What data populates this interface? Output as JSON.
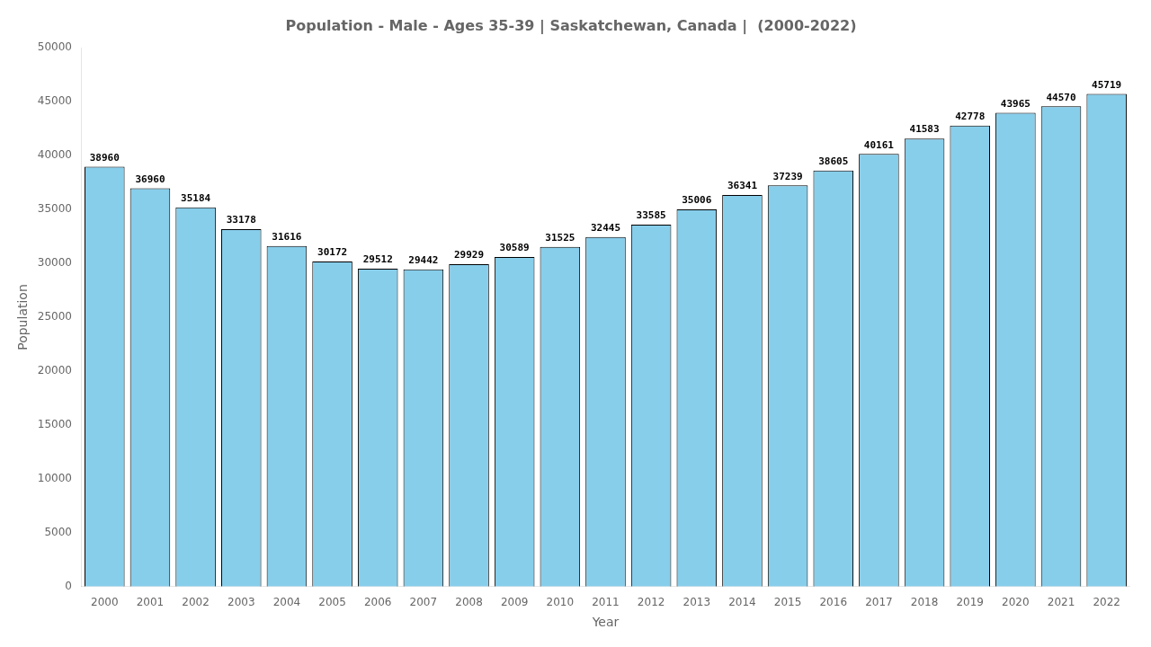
{
  "chart_data": {
    "type": "bar",
    "title": "Population - Male - Ages 35-39 | Saskatchewan, Canada |  (2000-2022)",
    "xlabel": "Year",
    "ylabel": "Population",
    "categories": [
      "2000",
      "2001",
      "2002",
      "2003",
      "2004",
      "2005",
      "2006",
      "2007",
      "2008",
      "2009",
      "2010",
      "2011",
      "2012",
      "2013",
      "2014",
      "2015",
      "2016",
      "2017",
      "2018",
      "2019",
      "2020",
      "2021",
      "2022"
    ],
    "values": [
      38960,
      36960,
      35184,
      33178,
      31616,
      30172,
      29512,
      29442,
      29929,
      30589,
      31525,
      32445,
      33585,
      35006,
      36341,
      37239,
      38605,
      40161,
      41583,
      42778,
      43965,
      44570,
      45719
    ],
    "color": "#87CEEB",
    "ylim": [
      0,
      50000
    ],
    "yticks": [
      0,
      5000,
      10000,
      15000,
      20000,
      25000,
      30000,
      35000,
      40000,
      45000,
      50000
    ],
    "grid": false,
    "data_labels": true
  }
}
